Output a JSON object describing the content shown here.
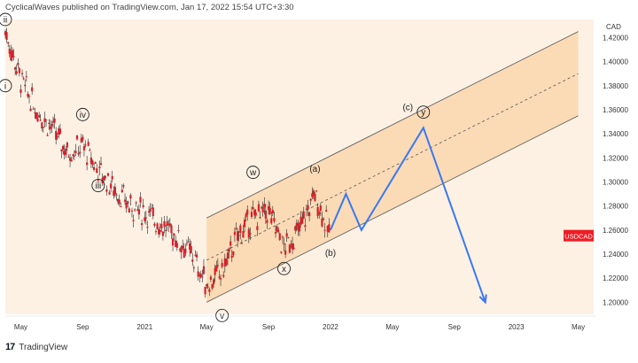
{
  "header": {
    "published_text": "CyclicalWaves published on TradingView.com, Jan 17, 2022 15:54 UTC+3:30"
  },
  "footer": {
    "logo_glyph": "17",
    "brand": "TradingView"
  },
  "colors": {
    "background": "#fdf1e4",
    "channel_fill": "#fad7ae",
    "candle": "#d8202a",
    "projection": "#3a78f0",
    "price_badge": "#ee1d25"
  },
  "chart_data": {
    "type": "line",
    "title": "",
    "currency_label": "CAD",
    "price_badge": "USDCAD",
    "xlabel": "",
    "ylabel": "",
    "ylim": [
      1.19,
      1.435
    ],
    "x_tick_labels": [
      "May",
      "Sep",
      "2021",
      "May",
      "Sep",
      "2022",
      "May",
      "Sep",
      "2023",
      "May"
    ],
    "y_ticks": [
      "1.42000",
      "1.40000",
      "1.38000",
      "1.36000",
      "1.34000",
      "1.32000",
      "1.30000",
      "1.28000",
      "1.26000",
      "1.24000",
      "1.22000",
      "1.20000"
    ],
    "y_tick_values": [
      1.42,
      1.4,
      1.38,
      1.36,
      1.34,
      1.32,
      1.3,
      1.28,
      1.26,
      1.24,
      1.22,
      1.2
    ],
    "price_series": {
      "name": "USDCAD",
      "x": [
        "2020-04",
        "2020-05",
        "2020-06",
        "2020-07",
        "2020-08",
        "2020-09",
        "2020-10",
        "2020-11",
        "2020-12",
        "2021-01",
        "2021-02",
        "2021-03",
        "2021-04",
        "2021-05",
        "2021-06",
        "2021-07",
        "2021-08",
        "2021-09",
        "2021-10",
        "2021-11",
        "2021-12",
        "2022-01"
      ],
      "values": [
        1.425,
        1.385,
        1.36,
        1.345,
        1.325,
        1.33,
        1.31,
        1.295,
        1.28,
        1.275,
        1.265,
        1.255,
        1.24,
        1.215,
        1.225,
        1.255,
        1.27,
        1.275,
        1.245,
        1.26,
        1.29,
        1.255
      ]
    },
    "projection": {
      "x": [
        "2022-01",
        "2022-02",
        "2022-03",
        "2022-07",
        "2022-11"
      ],
      "values": [
        1.26,
        1.29,
        1.26,
        1.345,
        1.2
      ]
    },
    "channel": {
      "upper": {
        "x": [
          "2021-05",
          "2023-05"
        ],
        "values": [
          1.27,
          1.425
        ]
      },
      "mid": {
        "x": [
          "2021-05",
          "2023-05"
        ],
        "values": [
          1.235,
          1.39
        ]
      },
      "lower": {
        "x": [
          "2021-05",
          "2023-05"
        ],
        "values": [
          1.2,
          1.355
        ]
      }
    },
    "wave_labels": [
      {
        "text": "ii",
        "x": "2020-04",
        "value": 1.435,
        "circled": true
      },
      {
        "text": "i",
        "x": "2020-04",
        "value": 1.38,
        "circled": true
      },
      {
        "text": "iv",
        "x": "2020-09",
        "value": 1.356,
        "circled": true
      },
      {
        "text": "iii",
        "x": "2020-10",
        "value": 1.297,
        "circled": true
      },
      {
        "text": "w",
        "x": "2021-08",
        "value": 1.308,
        "circled": true
      },
      {
        "text": "v",
        "x": "2021-06",
        "value": 1.189,
        "circled": true
      },
      {
        "text": "x",
        "x": "2021-10",
        "value": 1.228,
        "circled": true
      },
      {
        "text": "(a)",
        "x": "2021-12",
        "value": 1.311,
        "circled": false
      },
      {
        "text": "(b)",
        "x": "2022-01",
        "value": 1.241,
        "circled": false
      },
      {
        "text": "(c)",
        "x": "2022-06",
        "value": 1.362,
        "circled": false
      },
      {
        "text": "y",
        "x": "2022-07",
        "value": 1.358,
        "circled": true
      }
    ],
    "grid": false,
    "legend": "none"
  }
}
